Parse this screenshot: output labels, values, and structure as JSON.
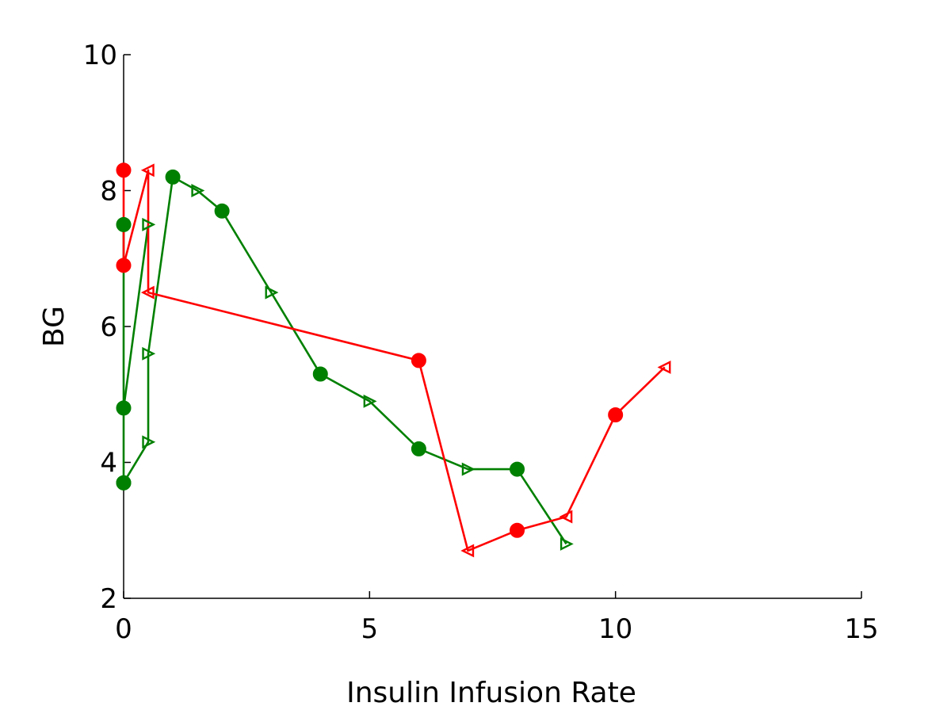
{
  "chart_data": {
    "type": "line",
    "xlabel": "Insulin Infusion Rate",
    "ylabel": "BG",
    "xlim": [
      0,
      15
    ],
    "ylim": [
      2,
      10
    ],
    "xticks": [
      "0",
      "5",
      "10",
      "15"
    ],
    "yticks": [
      "2",
      "4",
      "6",
      "8",
      "10"
    ],
    "grid": false,
    "legend": "none",
    "series": [
      {
        "color": "#008000",
        "points": [
          {
            "x": 0,
            "y": 3.7,
            "marker": "circle"
          },
          {
            "x": 0.5,
            "y": 4.3,
            "marker": "triangle-right"
          },
          {
            "x": 0.5,
            "y": 5.6,
            "marker": "triangle-right"
          },
          {
            "x": 1,
            "y": 8.2,
            "marker": "circle"
          },
          {
            "x": 1.5,
            "y": 8.0,
            "marker": "triangle-right"
          },
          {
            "x": 2,
            "y": 7.7,
            "marker": "circle"
          },
          {
            "x": 3,
            "y": 6.5,
            "marker": "triangle-right"
          },
          {
            "x": 4,
            "y": 5.3,
            "marker": "circle"
          },
          {
            "x": 5,
            "y": 4.9,
            "marker": "triangle-right"
          },
          {
            "x": 6,
            "y": 4.2,
            "marker": "circle"
          },
          {
            "x": 7,
            "y": 3.9,
            "marker": "triangle-right"
          },
          {
            "x": 8,
            "y": 3.9,
            "marker": "circle"
          },
          {
            "x": 9,
            "y": 2.8,
            "marker": "triangle-right"
          }
        ],
        "extra_segments": [
          [
            {
              "x": 0,
              "y": 4.8,
              "marker": "circle"
            },
            {
              "x": 0.5,
              "y": 7.5,
              "marker": "triangle-right"
            }
          ],
          [
            {
              "x": 0,
              "y": 7.5,
              "marker": "circle"
            },
            {
              "x": 0,
              "y": 3.7,
              "marker": "circle"
            }
          ]
        ]
      },
      {
        "color": "#ff0000",
        "points": [
          {
            "x": 0,
            "y": 8.3,
            "marker": "circle"
          },
          {
            "x": 0,
            "y": 6.9,
            "marker": "circle"
          },
          {
            "x": 0.5,
            "y": 8.3,
            "marker": "triangle-left"
          },
          {
            "x": 0.5,
            "y": 6.5,
            "marker": "triangle-left"
          },
          {
            "x": 6,
            "y": 5.5,
            "marker": "circle"
          },
          {
            "x": 7,
            "y": 2.7,
            "marker": "triangle-left"
          },
          {
            "x": 8,
            "y": 3.0,
            "marker": "circle"
          },
          {
            "x": 9,
            "y": 3.2,
            "marker": "triangle-left"
          },
          {
            "x": 10,
            "y": 4.7,
            "marker": "circle"
          },
          {
            "x": 11,
            "y": 5.4,
            "marker": "triangle-left"
          }
        ]
      }
    ]
  }
}
